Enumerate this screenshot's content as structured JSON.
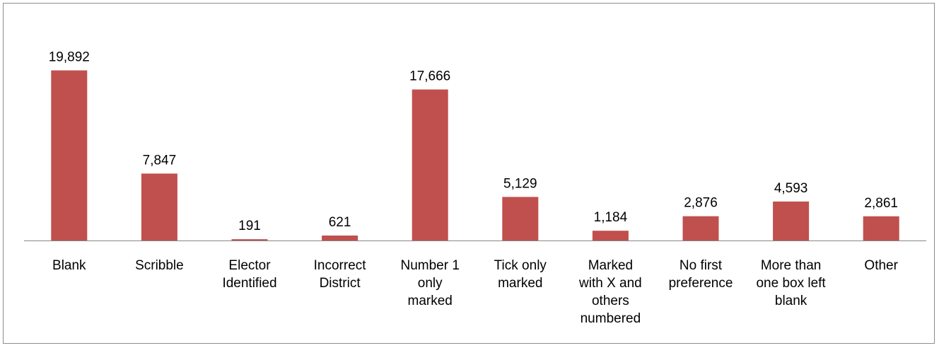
{
  "chart_data": {
    "type": "bar",
    "title": "",
    "xlabel": "",
    "ylabel": "",
    "ylim": [
      0,
      22000
    ],
    "grid": false,
    "legend": "none",
    "bar_color": "#c0504d",
    "axis_color": "#878787",
    "categories": [
      [
        "Blank"
      ],
      [
        "Scribble"
      ],
      [
        "Elector",
        "Identified"
      ],
      [
        "Incorrect",
        "District"
      ],
      [
        "Number 1",
        "only",
        "marked"
      ],
      [
        "Tick only",
        "marked"
      ],
      [
        "Marked",
        "with X and",
        "others",
        "numbered"
      ],
      [
        "No first",
        "preference"
      ],
      [
        "More than",
        "one box left",
        "blank"
      ],
      [
        "Other"
      ]
    ],
    "values": [
      19892,
      7847,
      191,
      621,
      17666,
      5129,
      1184,
      2876,
      4593,
      2861
    ],
    "data_labels": [
      "19,892",
      "7,847",
      "191",
      "621",
      "17,666",
      "5,129",
      "1,184",
      "2,876",
      "4,593",
      "2,861"
    ]
  }
}
